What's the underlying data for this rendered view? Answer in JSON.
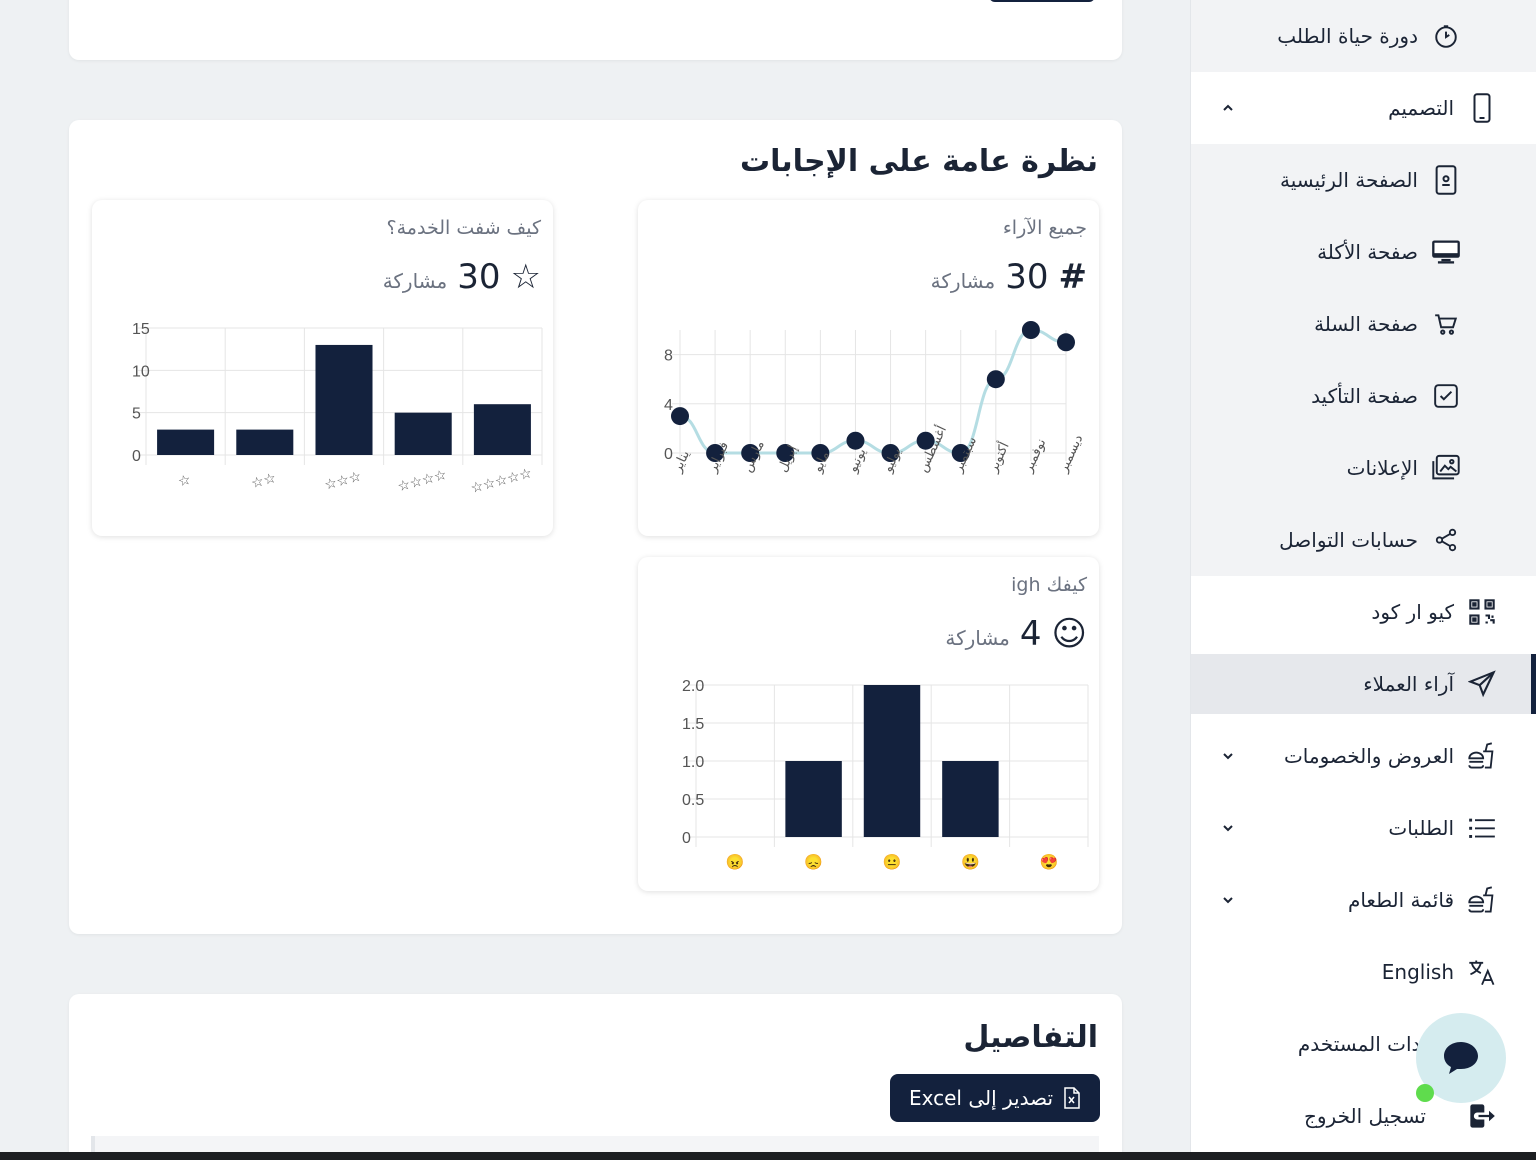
{
  "sidebar": {
    "items": [
      {
        "label": "دورة حياة الطلب",
        "icon": "timer-icon"
      },
      {
        "label": "التصميم",
        "icon": "mobile-icon"
      },
      {
        "label": "الصفحة الرئيسية",
        "icon": "tablet-icon"
      },
      {
        "label": "صفحة الأكلة",
        "icon": "desktop-icon"
      },
      {
        "label": "صفحة السلة",
        "icon": "cart-icon"
      },
      {
        "label": "صفحة التأكيد",
        "icon": "check-square-icon"
      },
      {
        "label": "الإعلانات",
        "icon": "images-icon"
      },
      {
        "label": "حسابات التواصل",
        "icon": "share-icon"
      },
      {
        "label": "كيو ار كود",
        "icon": "qr-code-icon"
      },
      {
        "label": "آراء العملاء",
        "icon": "send-icon"
      },
      {
        "label": "العروض والخصومات",
        "icon": "food-icon"
      },
      {
        "label": "الطلبات",
        "icon": "list-icon"
      },
      {
        "label": "قائمة الطعام",
        "icon": "food-icon"
      },
      {
        "label": "English",
        "icon": "translate-icon"
      },
      {
        "label": "إعدادات المستخدم",
        "icon": "user-icon"
      },
      {
        "label": "تسجيل الخروج",
        "icon": "logout-icon"
      }
    ]
  },
  "overview": {
    "title": "نظرة عامة على الإجابات",
    "unit_label": "مشاركة",
    "all_opinions": {
      "title": "جميع الآراء",
      "icon": "#",
      "count": "30"
    },
    "service_rating": {
      "title": "كيف شفت الخدمة؟",
      "icon": "☆",
      "count": "30"
    },
    "mood": {
      "title": "كيفك igh",
      "icon": "☺",
      "count": "4"
    }
  },
  "details": {
    "title": "التفاصيل",
    "export_label": "تصدير إلى Excel"
  },
  "colors": {
    "primary": "#13213d",
    "line": "#b5dde3",
    "accent_green": "#5fdc4d"
  },
  "chart_data": [
    {
      "type": "line",
      "title": "جميع الآراء",
      "categories": [
        "يناير",
        "فبراير",
        "مارس",
        "إبريل",
        "مايو",
        "يونيو",
        "يوليو",
        "أغسطس",
        "سبتمبر",
        "أكتوبر",
        "نوفمبر",
        "ديسمبر"
      ],
      "values": [
        3,
        0,
        0,
        0,
        0,
        1,
        0,
        1,
        0,
        6,
        10,
        9
      ],
      "yticks": [
        0,
        4,
        8
      ],
      "ylim": [
        0,
        10
      ],
      "grid": true
    },
    {
      "type": "bar",
      "title": "كيف شفت الخدمة؟",
      "categories": [
        "☆",
        "☆☆",
        "☆☆☆",
        "☆☆☆☆",
        "☆☆☆☆☆"
      ],
      "values": [
        3,
        3,
        13,
        5,
        6
      ],
      "yticks": [
        0,
        5,
        10,
        15
      ],
      "ylim": [
        0,
        15
      ],
      "grid": true
    },
    {
      "type": "bar",
      "title": "كيفك igh",
      "categories": [
        "😠",
        "😞",
        "😐",
        "😃",
        "😍"
      ],
      "values": [
        0,
        1,
        2,
        1,
        0
      ],
      "yticks": [
        "0",
        "0.5",
        "1.0",
        "1.5",
        "2.0"
      ],
      "ylim": [
        0,
        2
      ],
      "grid": true
    }
  ]
}
